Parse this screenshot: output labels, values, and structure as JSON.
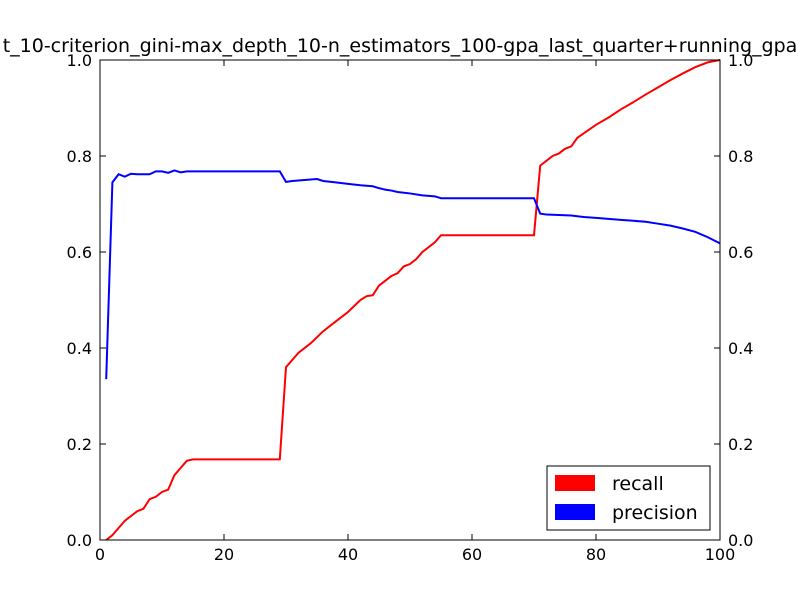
{
  "chart_data": {
    "type": "line",
    "title": "t_10-criterion_gini-max_depth_10-n_estimators_100-gpa_last_quarter+running_gpa",
    "xlabel": "",
    "ylabel": "",
    "xlim": [
      0,
      100
    ],
    "ylim": [
      0,
      1.0
    ],
    "ylim_right": [
      0,
      1.0
    ],
    "x_ticks": [
      "0",
      "20",
      "40",
      "60",
      "80",
      "100"
    ],
    "y_ticks": [
      "0.0",
      "0.2",
      "0.4",
      "0.6",
      "0.8",
      "1.0"
    ],
    "grid": false,
    "legend_position": "bottom-right",
    "series": [
      {
        "name": "recall",
        "color": "#ff0000",
        "points": [
          [
            1,
            0.0
          ],
          [
            2,
            0.01
          ],
          [
            3,
            0.025
          ],
          [
            4,
            0.04
          ],
          [
            5,
            0.05
          ],
          [
            6,
            0.06
          ],
          [
            7,
            0.065
          ],
          [
            8,
            0.085
          ],
          [
            9,
            0.09
          ],
          [
            10,
            0.1
          ],
          [
            11,
            0.105
          ],
          [
            12,
            0.135
          ],
          [
            13,
            0.15
          ],
          [
            14,
            0.165
          ],
          [
            15,
            0.168
          ],
          [
            20,
            0.168
          ],
          [
            25,
            0.168
          ],
          [
            29,
            0.168
          ],
          [
            30,
            0.36
          ],
          [
            31,
            0.375
          ],
          [
            32,
            0.39
          ],
          [
            34,
            0.41
          ],
          [
            36,
            0.435
          ],
          [
            38,
            0.455
          ],
          [
            40,
            0.475
          ],
          [
            42,
            0.5
          ],
          [
            43,
            0.508
          ],
          [
            44,
            0.51
          ],
          [
            45,
            0.53
          ],
          [
            46,
            0.54
          ],
          [
            47,
            0.55
          ],
          [
            48,
            0.556
          ],
          [
            49,
            0.57
          ],
          [
            50,
            0.575
          ],
          [
            51,
            0.585
          ],
          [
            52,
            0.6
          ],
          [
            53,
            0.61
          ],
          [
            54,
            0.62
          ],
          [
            55,
            0.635
          ],
          [
            60,
            0.635
          ],
          [
            65,
            0.635
          ],
          [
            70,
            0.635
          ],
          [
            71,
            0.78
          ],
          [
            72,
            0.79
          ],
          [
            73,
            0.8
          ],
          [
            74,
            0.805
          ],
          [
            75,
            0.815
          ],
          [
            76,
            0.82
          ],
          [
            77,
            0.838
          ],
          [
            78,
            0.847
          ],
          [
            80,
            0.865
          ],
          [
            82,
            0.88
          ],
          [
            84,
            0.897
          ],
          [
            86,
            0.912
          ],
          [
            88,
            0.928
          ],
          [
            90,
            0.943
          ],
          [
            92,
            0.958
          ],
          [
            94,
            0.972
          ],
          [
            96,
            0.985
          ],
          [
            98,
            0.995
          ],
          [
            100,
            1.0
          ]
        ]
      },
      {
        "name": "precision",
        "color": "#0000ff",
        "points": [
          [
            1,
            0.335
          ],
          [
            2,
            0.745
          ],
          [
            3,
            0.762
          ],
          [
            4,
            0.757
          ],
          [
            5,
            0.763
          ],
          [
            6,
            0.762
          ],
          [
            8,
            0.762
          ],
          [
            9,
            0.768
          ],
          [
            10,
            0.768
          ],
          [
            11,
            0.765
          ],
          [
            12,
            0.77
          ],
          [
            13,
            0.766
          ],
          [
            14,
            0.768
          ],
          [
            20,
            0.768
          ],
          [
            25,
            0.768
          ],
          [
            29,
            0.768
          ],
          [
            30,
            0.746
          ],
          [
            31,
            0.748
          ],
          [
            33,
            0.75
          ],
          [
            35,
            0.752
          ],
          [
            36,
            0.748
          ],
          [
            38,
            0.745
          ],
          [
            40,
            0.742
          ],
          [
            42,
            0.739
          ],
          [
            44,
            0.737
          ],
          [
            45,
            0.733
          ],
          [
            46,
            0.73
          ],
          [
            47,
            0.728
          ],
          [
            48,
            0.725
          ],
          [
            50,
            0.722
          ],
          [
            52,
            0.718
          ],
          [
            54,
            0.716
          ],
          [
            55,
            0.712
          ],
          [
            60,
            0.712
          ],
          [
            65,
            0.712
          ],
          [
            70,
            0.712
          ],
          [
            71,
            0.68
          ],
          [
            72,
            0.678
          ],
          [
            74,
            0.677
          ],
          [
            76,
            0.676
          ],
          [
            78,
            0.673
          ],
          [
            80,
            0.671
          ],
          [
            82,
            0.669
          ],
          [
            84,
            0.667
          ],
          [
            86,
            0.665
          ],
          [
            88,
            0.663
          ],
          [
            90,
            0.659
          ],
          [
            92,
            0.655
          ],
          [
            94,
            0.649
          ],
          [
            96,
            0.642
          ],
          [
            98,
            0.631
          ],
          [
            100,
            0.618
          ]
        ]
      }
    ]
  }
}
